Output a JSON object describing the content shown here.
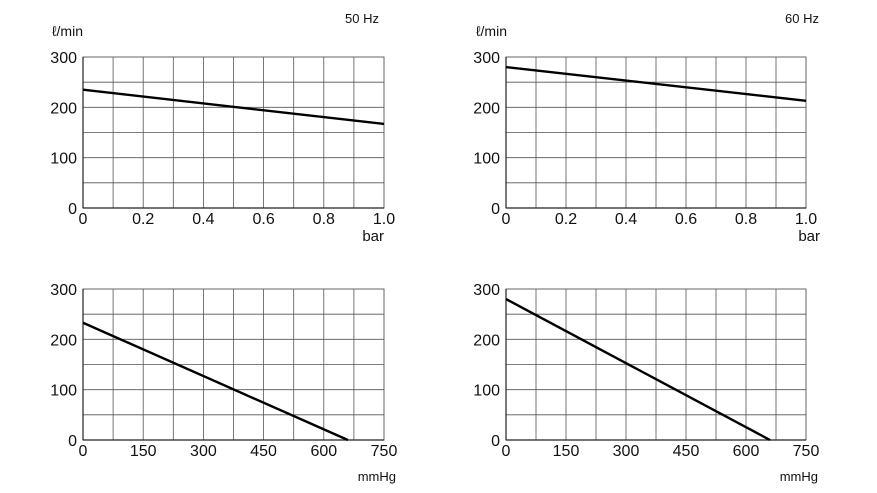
{
  "chart_data": [
    {
      "type": "line",
      "title": "50 Hz",
      "ylabel": "ℓ/min",
      "xlabel": "bar",
      "xlim": [
        0,
        1.0
      ],
      "ylim": [
        0,
        300
      ],
      "x_ticks": [
        "0",
        "0.2",
        "0.4",
        "0.6",
        "0.8",
        "1.0"
      ],
      "y_ticks": [
        "0",
        "100",
        "200",
        "300"
      ],
      "grid": true,
      "series": [
        {
          "x": [
            0,
            1.0
          ],
          "y": [
            235,
            167
          ]
        }
      ]
    },
    {
      "type": "line",
      "title": "60 Hz",
      "ylabel": "ℓ/min",
      "xlabel": "bar",
      "xlim": [
        0,
        1.0
      ],
      "ylim": [
        0,
        300
      ],
      "x_ticks": [
        "0",
        "0.2",
        "0.4",
        "0.6",
        "0.8",
        "1.0"
      ],
      "y_ticks": [
        "0",
        "100",
        "200",
        "300"
      ],
      "grid": true,
      "series": [
        {
          "x": [
            0,
            1.0
          ],
          "y": [
            280,
            213
          ]
        }
      ]
    },
    {
      "type": "line",
      "title": "",
      "ylabel": "",
      "xlabel": "mmHg",
      "xlim": [
        0,
        750
      ],
      "ylim": [
        0,
        300
      ],
      "x_ticks": [
        "0",
        "150",
        "300",
        "450",
        "600",
        "750"
      ],
      "y_ticks": [
        "0",
        "100",
        "200",
        "300"
      ],
      "grid": true,
      "series": [
        {
          "x": [
            0,
            660
          ],
          "y": [
            233,
            0
          ]
        }
      ]
    },
    {
      "type": "line",
      "title": "",
      "ylabel": "",
      "xlabel": "mmHg",
      "xlim": [
        0,
        750
      ],
      "ylim": [
        0,
        300
      ],
      "x_ticks": [
        "0",
        "150",
        "300",
        "450",
        "600",
        "750"
      ],
      "y_ticks": [
        "0",
        "100",
        "200",
        "300"
      ],
      "grid": true,
      "series": [
        {
          "x": [
            0,
            660
          ],
          "y": [
            280,
            0
          ]
        }
      ]
    }
  ]
}
